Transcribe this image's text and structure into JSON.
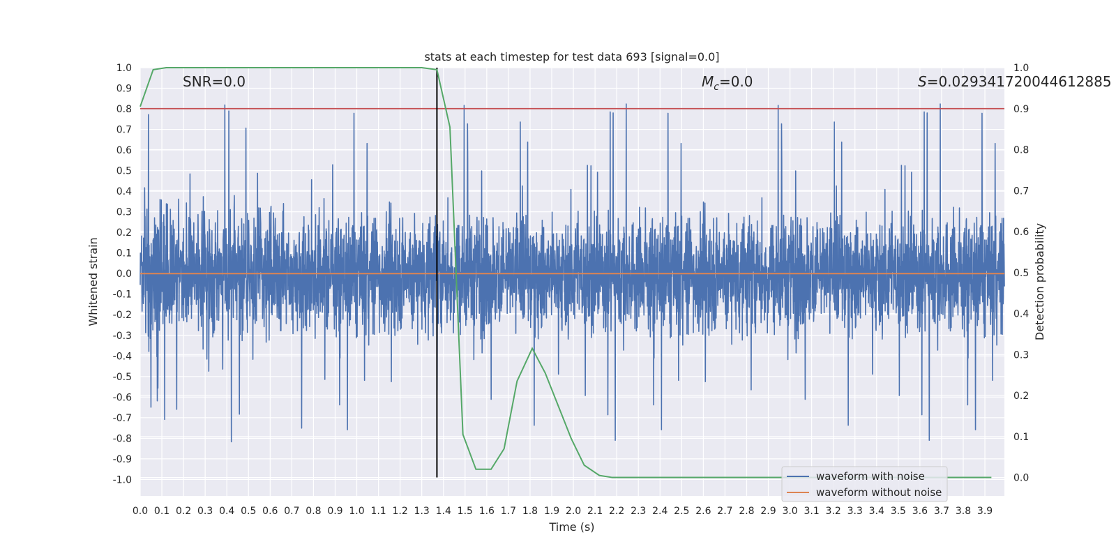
{
  "chart_data": {
    "type": "line",
    "title": "stats at each timestep for test data 693 [signal=0.0]",
    "xlabel": "Time (s)",
    "ylabel": "Whitened strain",
    "y2label": "Detection probability",
    "xlim": [
      0.0,
      3.99
    ],
    "ylim": [
      -1.08,
      1.0
    ],
    "y2lim": [
      -0.045,
      1.0
    ],
    "x_ticks": [
      "0.0",
      "0.1",
      "0.2",
      "0.3",
      "0.4",
      "0.5",
      "0.6",
      "0.7",
      "0.8",
      "0.9",
      "1.0",
      "1.1",
      "1.2",
      "1.3",
      "1.4",
      "1.5",
      "1.6",
      "1.7",
      "1.8",
      "1.9",
      "2.0",
      "2.1",
      "2.2",
      "2.3",
      "2.4",
      "2.5",
      "2.6",
      "2.7",
      "2.8",
      "2.9",
      "3.0",
      "3.1",
      "3.2",
      "3.3",
      "3.4",
      "3.5",
      "3.6",
      "3.7",
      "3.8",
      "3.9"
    ],
    "y_ticks": [
      "1.0",
      "0.9",
      "0.8",
      "0.7",
      "0.6",
      "0.5",
      "0.4",
      "0.3",
      "0.2",
      "0.1",
      "0.0",
      "-0.1",
      "-0.2",
      "-0.3",
      "-0.4",
      "-0.5",
      "-0.6",
      "-0.7",
      "-0.8",
      "-0.9",
      "-1.0"
    ],
    "y2_ticks": [
      "0.0",
      "0.1",
      "0.2",
      "0.3",
      "0.4",
      "0.5",
      "0.6",
      "0.7",
      "0.8",
      "0.9",
      "1.0"
    ],
    "annotations": {
      "snr": "SNR=0.0",
      "mc": "=0.0",
      "mc_symbol": "M",
      "mc_sub": "c",
      "s": "=0.029341720044612885",
      "s_symbol": "S"
    },
    "grid": true,
    "legend_position": "bottom-right",
    "colors": {
      "noise": "#4c72b0",
      "clean": "#dd8452",
      "prob": "#55a868",
      "threshold": "#c44e52",
      "marker": "#000000",
      "background": "#eaeaf2"
    },
    "series": [
      {
        "name": "waveform with noise",
        "axis": "left",
        "sample_count": 4096,
        "range": [
          -1.0,
          0.91
        ]
      },
      {
        "name": "waveform without noise",
        "axis": "left",
        "x": [
          0.0,
          3.99
        ],
        "y": [
          0.0,
          0.0
        ]
      },
      {
        "axis": "right",
        "x": [
          0.0,
          0.06,
          0.12,
          0.18,
          1.3,
          1.37,
          1.43,
          1.49,
          1.55,
          1.62,
          1.68,
          1.74,
          1.81,
          1.87,
          1.93,
          1.99,
          2.05,
          2.12,
          2.18,
          2.24,
          3.93
        ],
        "y": [
          0.905,
          0.995,
          1.0,
          1.0,
          1.0,
          0.995,
          0.855,
          0.105,
          0.02,
          0.02,
          0.07,
          0.235,
          0.315,
          0.255,
          0.175,
          0.095,
          0.03,
          0.005,
          0.0,
          0.0,
          0.0
        ]
      },
      {
        "axis": "right",
        "x": [
          0.0,
          3.99
        ],
        "y": [
          0.9,
          0.9
        ]
      }
    ],
    "marker_x": 1.37
  }
}
